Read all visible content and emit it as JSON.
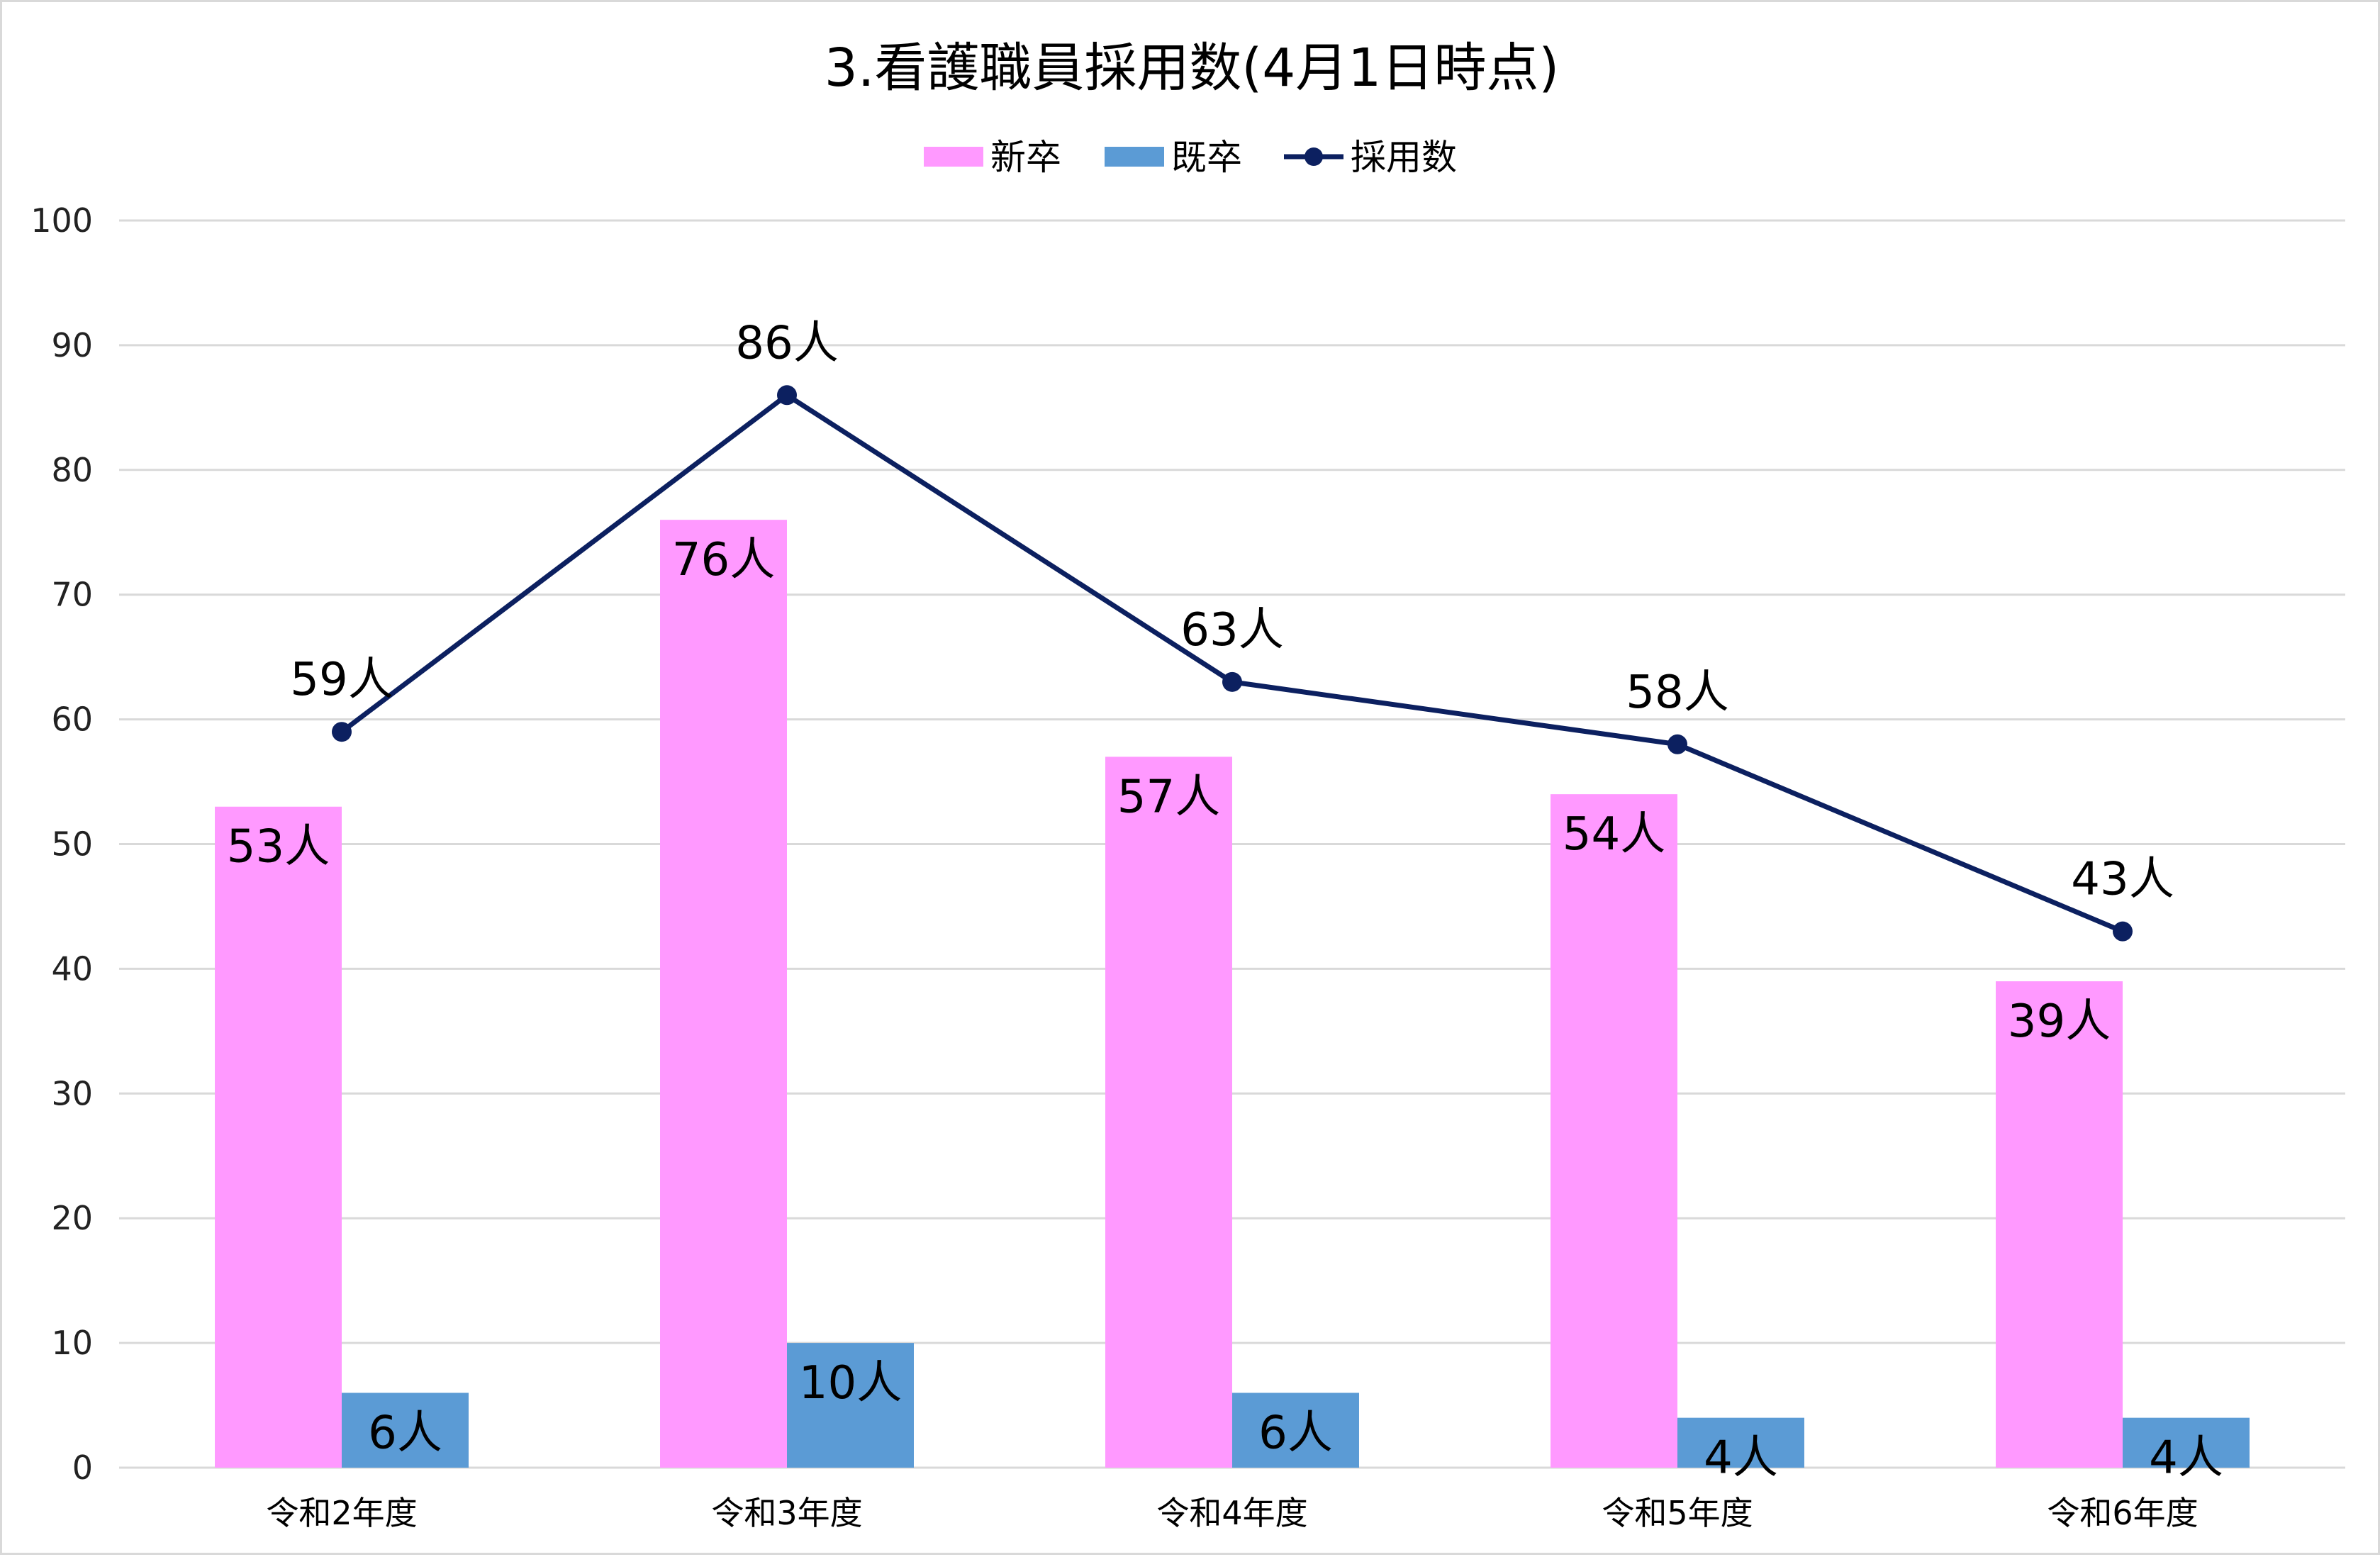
{
  "chart_data": {
    "type": "bar",
    "title": "3.看護職員採用数(4月1日時点)",
    "categories": [
      "令和2年度",
      "令和3年度",
      "令和4年度",
      "令和5年度",
      "令和6年度"
    ],
    "series": [
      {
        "name": "新卒",
        "type": "bar",
        "color": "#ff99ff",
        "values": [
          53,
          76,
          57,
          54,
          39
        ],
        "labels": [
          "53人",
          "76人",
          "57人",
          "54人",
          "39人"
        ]
      },
      {
        "name": "既卒",
        "type": "bar",
        "color": "#5b9bd5",
        "values": [
          6,
          10,
          6,
          4,
          4
        ],
        "labels": [
          "6人",
          "10人",
          "6人",
          "4人",
          "4人"
        ]
      },
      {
        "name": "採用数",
        "type": "line",
        "color": "#0c2060",
        "values": [
          59,
          86,
          63,
          58,
          43
        ],
        "labels": [
          "59人",
          "86人",
          "63人",
          "58人",
          "43人"
        ]
      }
    ],
    "ylim": [
      0,
      100
    ],
    "yticks": [
      0,
      10,
      20,
      30,
      40,
      50,
      60,
      70,
      80,
      90,
      100
    ],
    "grid": true,
    "legend": "top-center"
  }
}
